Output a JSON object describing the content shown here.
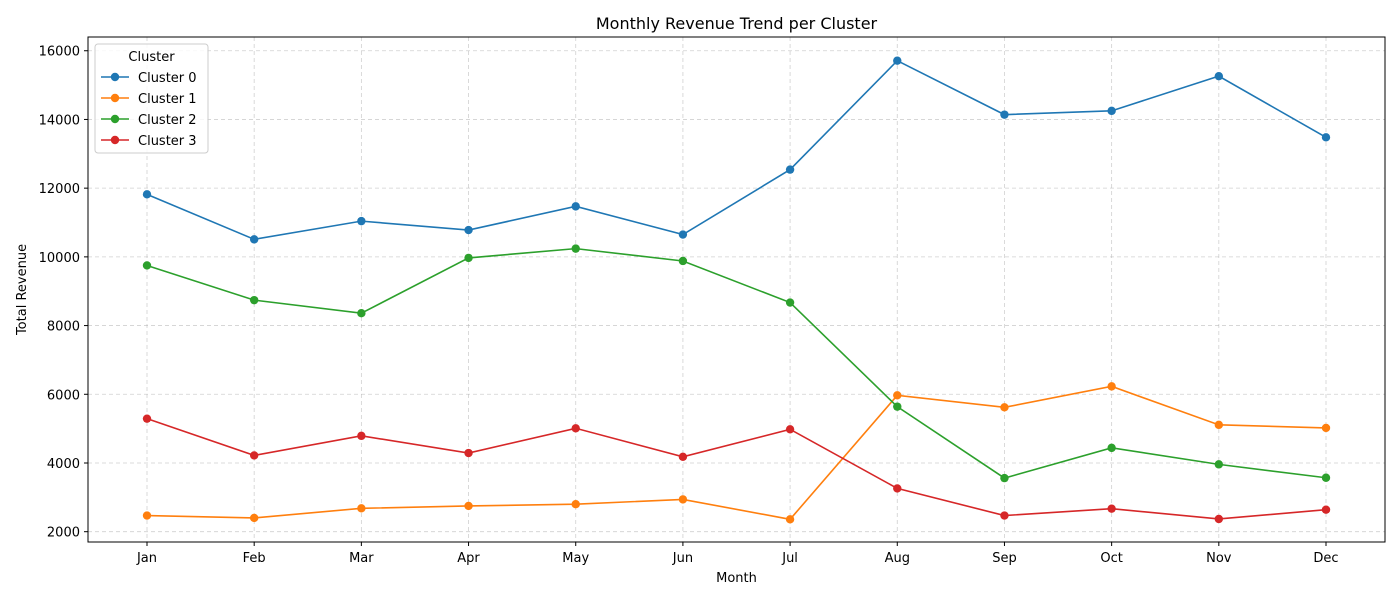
{
  "chart_data": {
    "type": "line",
    "title": "Monthly Revenue Trend per Cluster",
    "xlabel": "Month",
    "ylabel": "Total Revenue",
    "categories": [
      "Jan",
      "Feb",
      "Mar",
      "Apr",
      "May",
      "Jun",
      "Jul",
      "Aug",
      "Sep",
      "Oct",
      "Nov",
      "Dec"
    ],
    "ylim": [
      1700,
      16400
    ],
    "yticks": [
      2000,
      4000,
      6000,
      8000,
      10000,
      12000,
      14000,
      16000
    ],
    "grid": true,
    "legend": {
      "title": "Cluster",
      "placement": "top-left"
    },
    "series": [
      {
        "name": "Cluster 0",
        "color": "#1f77b4",
        "values": [
          11820,
          10510,
          11040,
          10780,
          11470,
          10650,
          12540,
          15710,
          14140,
          14250,
          15260,
          13480
        ]
      },
      {
        "name": "Cluster 1",
        "color": "#ff7f0e",
        "values": [
          2470,
          2400,
          2680,
          2750,
          2800,
          2940,
          2360,
          5970,
          5620,
          6230,
          5110,
          5020
        ]
      },
      {
        "name": "Cluster 2",
        "color": "#2ca02c",
        "values": [
          9750,
          8740,
          8360,
          9970,
          10240,
          9880,
          8670,
          5640,
          3560,
          4440,
          3960,
          3570
        ]
      },
      {
        "name": "Cluster 3",
        "color": "#d62728",
        "values": [
          5290,
          4220,
          4790,
          4290,
          5010,
          4180,
          4980,
          3260,
          2470,
          2670,
          2370,
          2640
        ]
      }
    ]
  }
}
